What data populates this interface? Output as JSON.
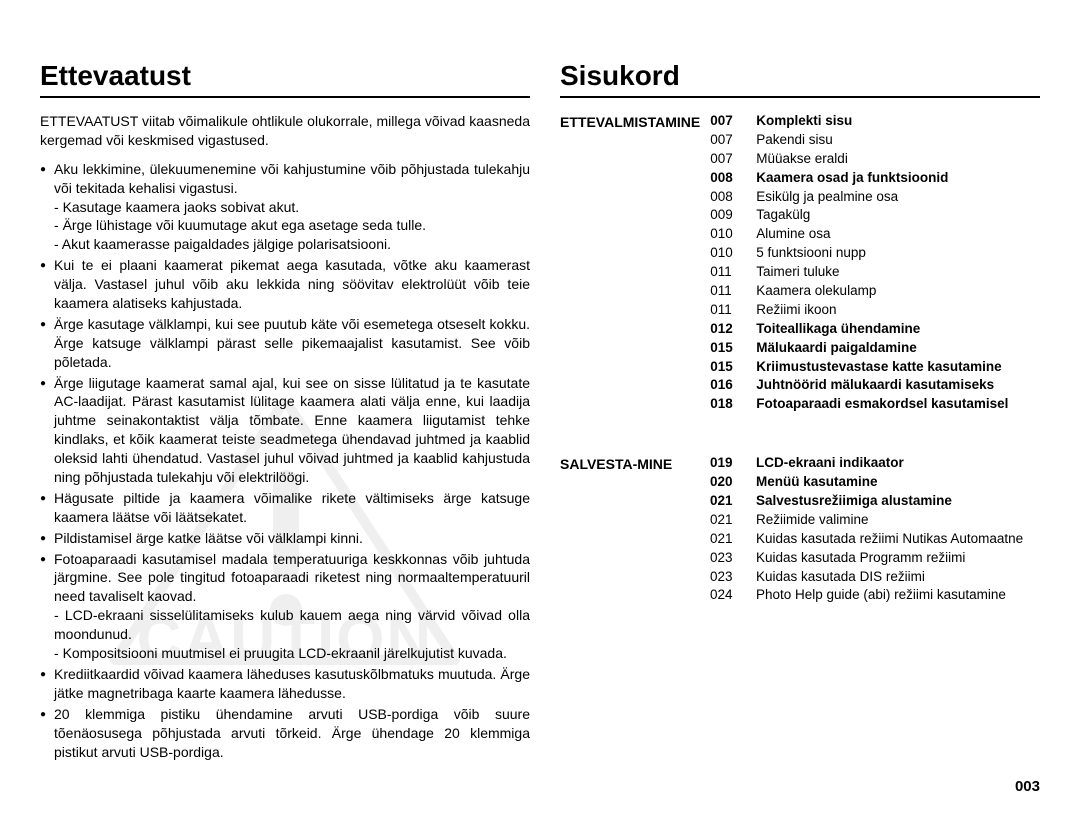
{
  "pageNumber": "003",
  "left": {
    "heading": "Ettevaatust",
    "intro": "ETTEVAATUST viitab võimalikule ohtlikule olukorrale, millega võivad kaasneda kergemad või keskmised vigastused.",
    "bullets": [
      {
        "text": "Aku lekkimine, ülekuumenemine või kahjustumine võib põhjustada tulekahju või tekitada kehalisi vigastusi.",
        "subs": [
          "Kasutage kaamera jaoks sobivat akut.",
          "Ärge lühistage või kuumutage akut ega asetage seda tulle.",
          "Akut kaamerasse paigaldades jälgige polarisatsiooni."
        ]
      },
      {
        "text": "Kui te ei plaani kaamerat pikemat aega kasutada, võtke aku kaamerast välja. Vastasel juhul võib aku lekkida ning söövitav elektrolüüt võib teie kaamera alatiseks kahjustada.",
        "subs": []
      },
      {
        "text": "Ärge kasutage välklampi, kui see puutub käte või esemetega otseselt kokku. Ärge katsuge välklampi pärast selle pikemaajalist kasutamist. See võib põletada.",
        "subs": []
      },
      {
        "text": "Ärge liigutage kaamerat samal ajal, kui see on sisse lülitatud ja te kasutate AC-laadijat. Pärast kasutamist lülitage kaamera alati välja enne, kui laadija juhtme seinakontaktist välja tõmbate. Enne kaamera liigutamist tehke kindlaks, et kõik kaamerat teiste seadmetega ühendavad juhtmed ja kaablid oleksid lahti ühendatud. Vastasel juhul võivad juhtmed ja kaablid kahjustuda ning põhjustada tulekahju või elektrilöögi.",
        "subs": []
      },
      {
        "text": "Hägusate piltide ja kaamera võimalike rikete vältimiseks ärge katsuge kaamera läätse või läätsekatet.",
        "subs": []
      },
      {
        "text": "Pildistamisel ärge katke läätse või välklampi kinni.",
        "subs": []
      },
      {
        "text": "Fotoaparaadi kasutamisel madala temperatuuriga keskkonnas võib juhtuda järgmine. See pole tingitud fotoaparaadi riketest ning normaaltemperatuuril need tavaliselt kaovad.",
        "subs": [
          "LCD-ekraani sisselülitamiseks kulub kauem aega ning värvid võivad olla moondunud.",
          "Kompositsiooni muutmisel ei pruugita LCD-ekraanil järelkujutist kuvada."
        ]
      },
      {
        "text": "Krediitkaardid võivad kaamera läheduses kasutuskõlbmatuks muutuda. Ärge jätke magnetribaga kaarte kaamera lähedusse.",
        "subs": []
      },
      {
        "text": "20 klemmiga pistiku ühendamine arvuti USB-pordiga võib suure tõenäosusega põhjustada arvuti tõrkeid. Ärge ühendage 20 klemmiga pistikut arvuti USB-pordiga.",
        "subs": []
      }
    ],
    "watermarkText": "CAUTION"
  },
  "right": {
    "heading": "Sisukord",
    "sections": [
      {
        "label": "ETTEVALMISTAMINE",
        "rows": [
          {
            "page": "007",
            "title": "Komplekti sisu",
            "bold": true
          },
          {
            "page": "007",
            "title": "Pakendi sisu",
            "bold": false
          },
          {
            "page": "007",
            "title": "Müüakse eraldi",
            "bold": false
          },
          {
            "page": "008",
            "title": "Kaamera osad ja funktsioonid",
            "bold": true
          },
          {
            "page": "008",
            "title": "Esikülg ja pealmine osa",
            "bold": false
          },
          {
            "page": "009",
            "title": "Tagakülg",
            "bold": false
          },
          {
            "page": "010",
            "title": "Alumine osa",
            "bold": false
          },
          {
            "page": "010",
            "title": "5 funktsiooni nupp",
            "bold": false
          },
          {
            "page": "011",
            "title": "Taimeri tuluke",
            "bold": false
          },
          {
            "page": "011",
            "title": "Kaamera olekulamp",
            "bold": false
          },
          {
            "page": "011",
            "title": "Režiimi ikoon",
            "bold": false
          },
          {
            "page": "012",
            "title": "Toiteallikaga ühendamine",
            "bold": true
          },
          {
            "page": "015",
            "title": "Mälukaardi paigaldamine",
            "bold": true
          },
          {
            "page": "015",
            "title": "Kriimustustevastase katte kasutamine",
            "bold": true
          },
          {
            "page": "016",
            "title": "Juhtnöörid mälukaardi kasutamiseks",
            "bold": true
          },
          {
            "page": "018",
            "title": "Fotoaparaadi esmakordsel kasutamisel",
            "bold": true
          }
        ]
      },
      {
        "label": "SALVESTA-MINE",
        "rows": [
          {
            "page": "019",
            "title": "LCD-ekraani indikaator",
            "bold": true
          },
          {
            "page": "020",
            "title": "Menüü kasutamine",
            "bold": true
          },
          {
            "page": "021",
            "title": "Salvestusrežiimiga alustamine",
            "bold": true
          },
          {
            "page": "021",
            "title": "Režiimide valimine",
            "bold": false
          },
          {
            "page": "021",
            "title": "Kuidas kasutada režiimi Nutikas Automaatne",
            "bold": false
          },
          {
            "page": "023",
            "title": "Kuidas kasutada Programm režiimi",
            "bold": false
          },
          {
            "page": "023",
            "title": "Kuidas kasutada DIS režiimi",
            "bold": false
          },
          {
            "page": "024",
            "title": "Photo Help guide (abi) režiimi kasutamine",
            "bold": false
          }
        ]
      }
    ]
  }
}
